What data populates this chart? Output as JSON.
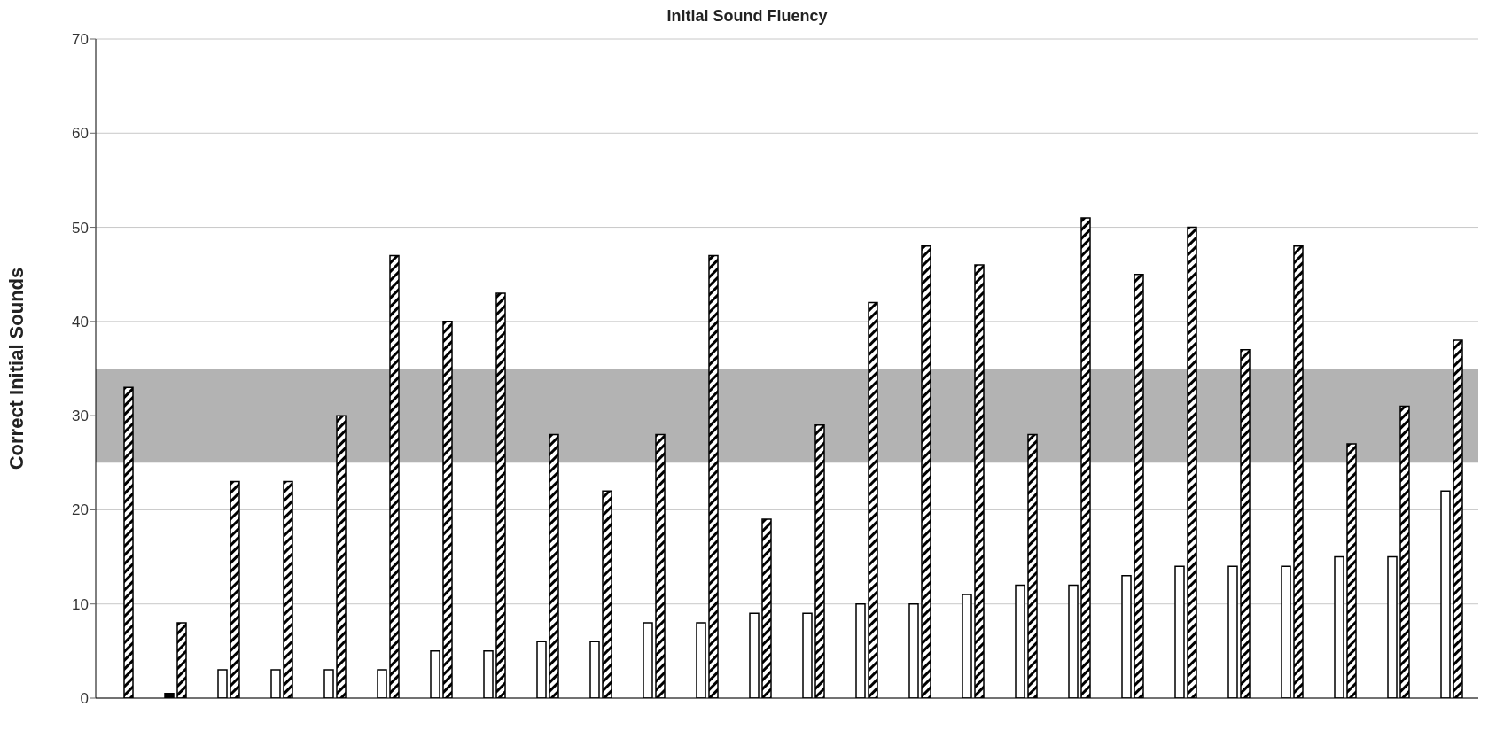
{
  "chart_data": {
    "type": "bar",
    "title": "Initial Sound Fluency",
    "ylabel": "Correct Initial Sounds",
    "categories": [
      null,
      null,
      null,
      null,
      null,
      null,
      null,
      null,
      null,
      null,
      null,
      null,
      null,
      null,
      null,
      null,
      null,
      null,
      null,
      null,
      null,
      null,
      null,
      null,
      null,
      null
    ],
    "series": [
      {
        "color": "#ffffff",
        "colors": [
          "#ffffff",
          "#000000",
          "#ffffff",
          "#ffffff",
          "#ffffff",
          "#ffffff",
          "#ffffff",
          "#ffffff",
          "#ffffff",
          "#ffffff",
          "#ffffff",
          "#ffffff",
          "#ffffff",
          "#ffffff",
          "#ffffff",
          "#ffffff",
          "#ffffff",
          "#ffffff",
          "#ffffff",
          "#ffffff",
          "#ffffff",
          "#ffffff",
          "#ffffff",
          "#ffffff",
          "#ffffff",
          "#ffffff"
        ],
        "values": [
          null,
          0.5,
          3,
          3,
          3,
          3,
          5,
          5,
          6,
          6,
          8,
          8,
          9,
          9,
          10,
          10,
          11,
          12,
          12,
          13,
          14,
          14,
          14,
          15,
          15,
          22
        ]
      },
      {
        "color": "#000000",
        "values": [
          33,
          8,
          23,
          23,
          30,
          47,
          40,
          43,
          28,
          22,
          28,
          47,
          19,
          29,
          42,
          48,
          46,
          28,
          51,
          45,
          50,
          37,
          48,
          27,
          31,
          38
        ]
      }
    ],
    "ylim": [
      0,
      70
    ],
    "yticks": [
      0,
      10,
      20,
      30,
      40,
      50,
      60,
      70
    ],
    "grid": "y",
    "legend": false,
    "bands": [
      {
        "axis": "y",
        "from": 25,
        "to": 35,
        "color": "#b3b3b3"
      }
    ]
  }
}
